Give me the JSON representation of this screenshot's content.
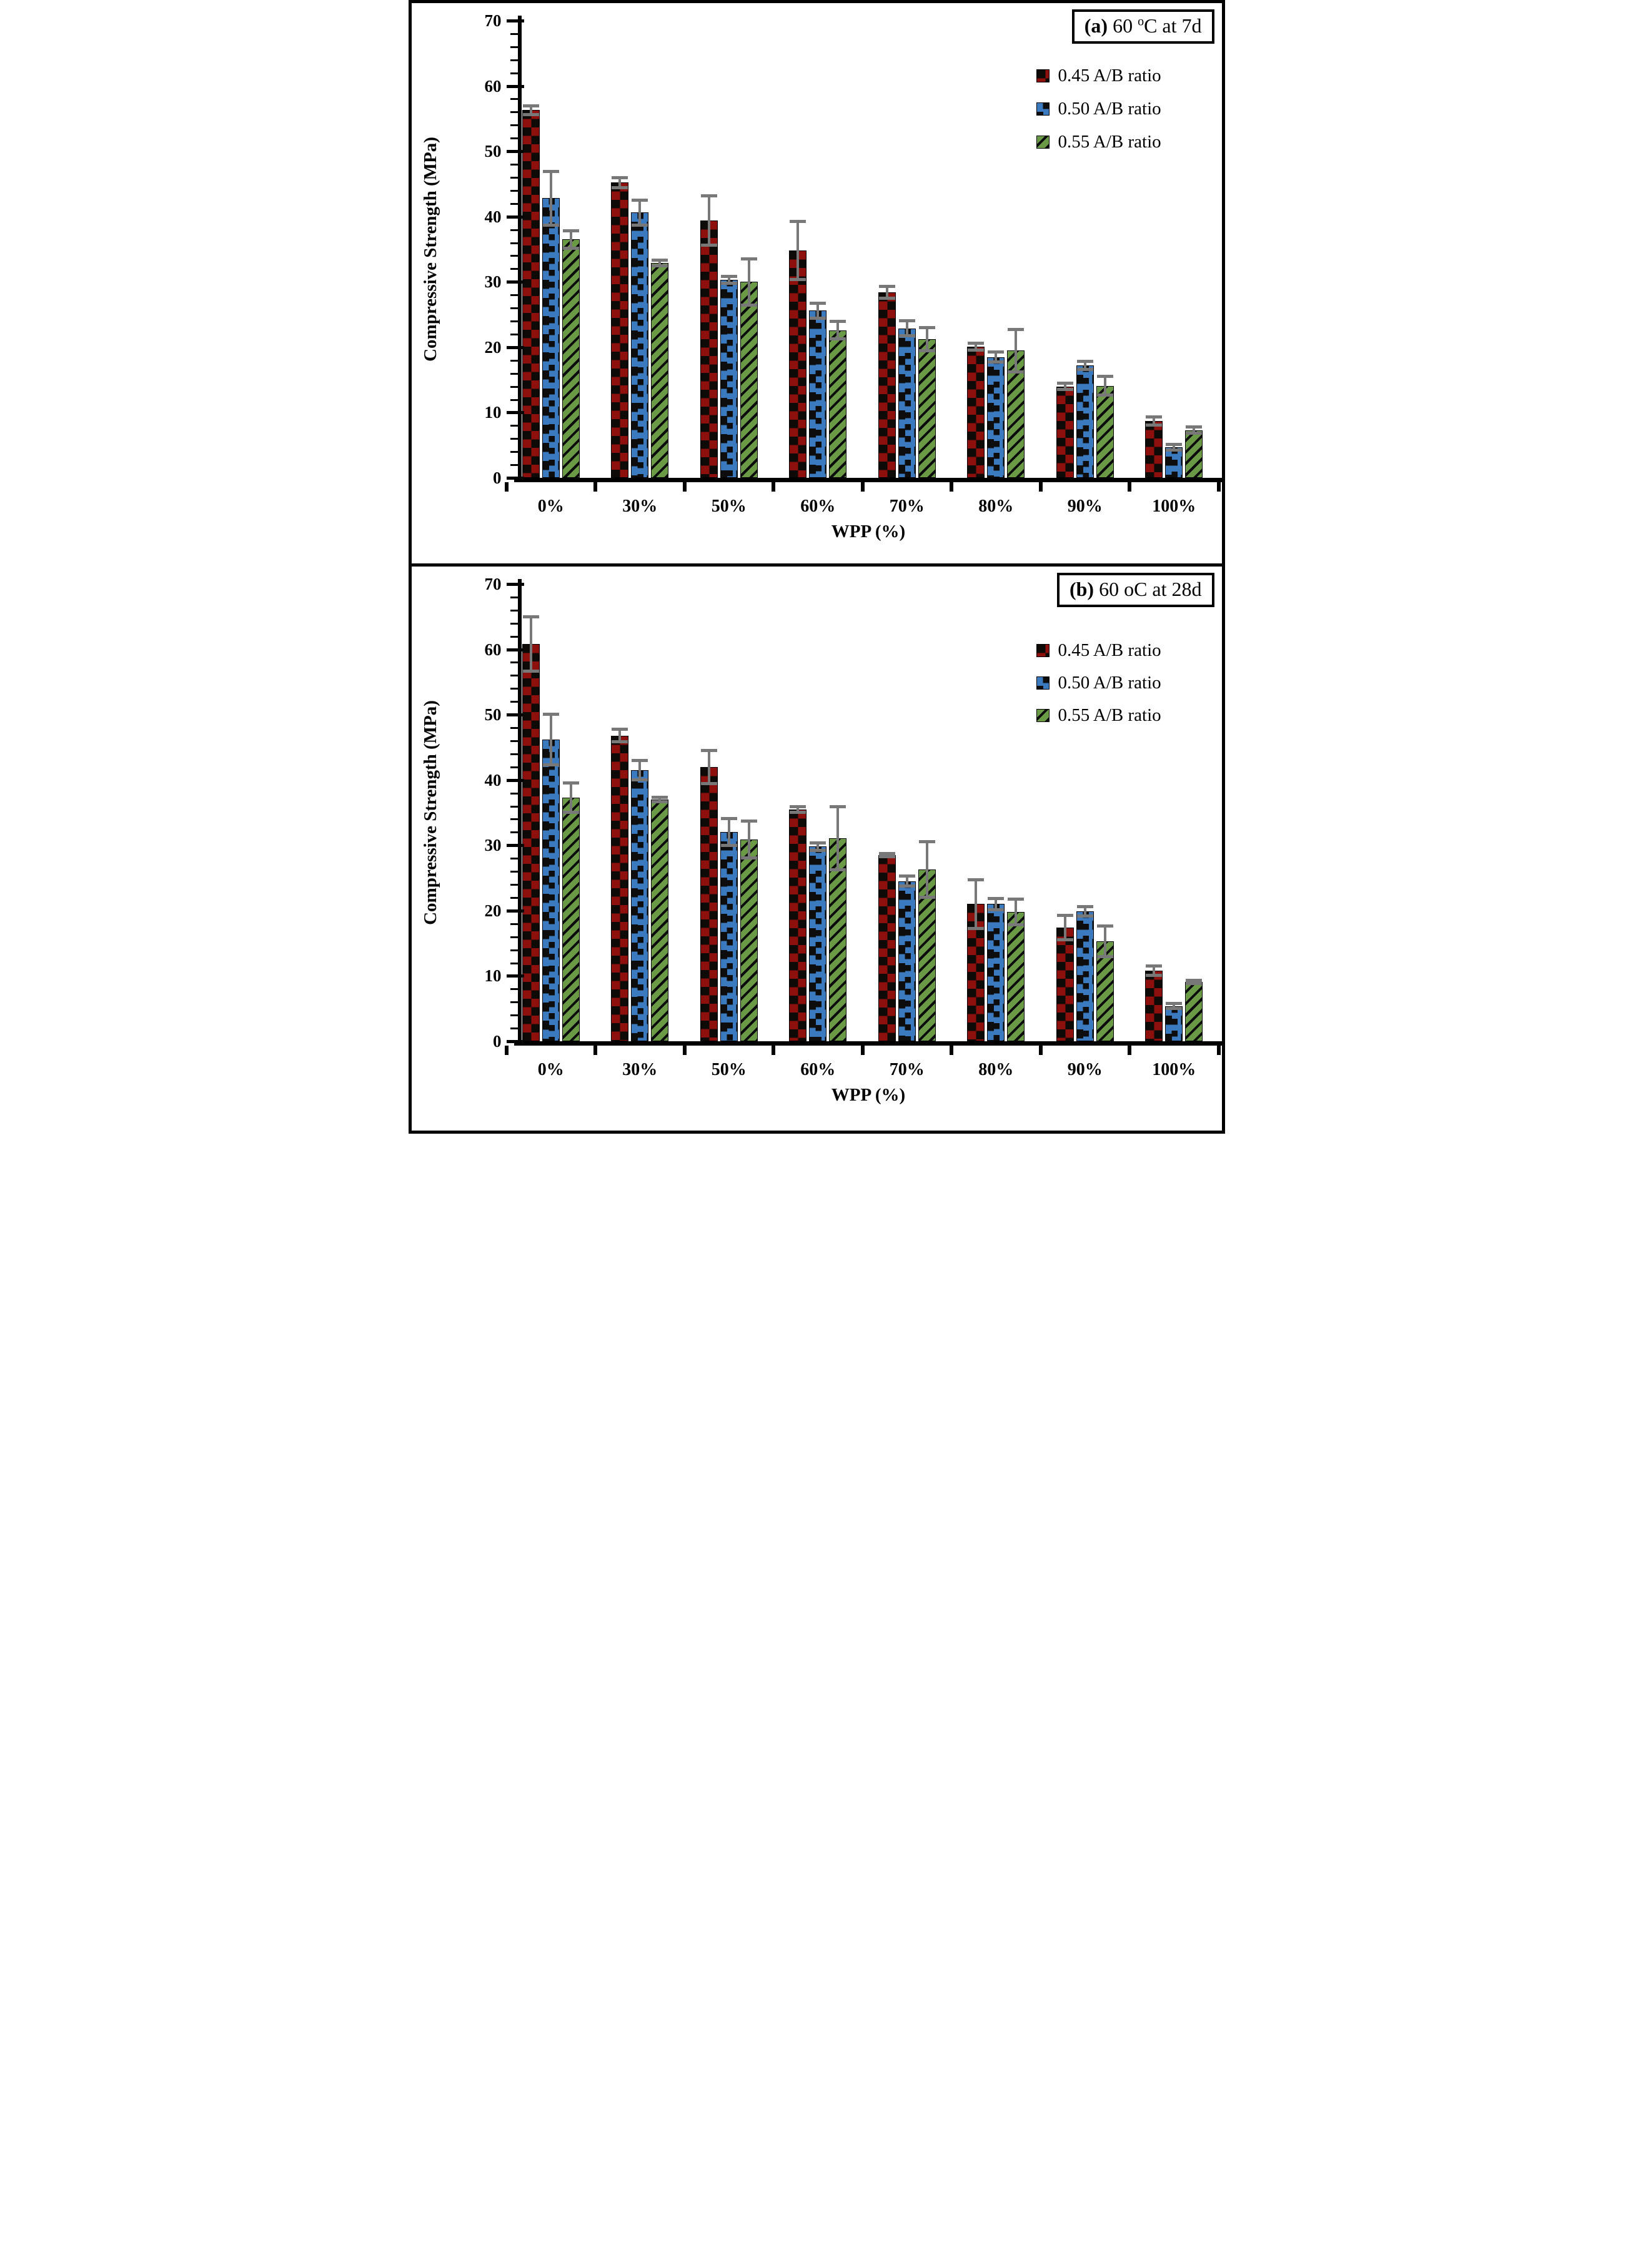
{
  "figure": {
    "background": "#ffffff",
    "border_color": "#000000",
    "error_bar_color": "#787878",
    "axis_color": "#000000"
  },
  "chart_data": [
    {
      "type": "bar",
      "panel": "a",
      "title": "(a) 60 oC at 7d",
      "title_parts": {
        "bold": "(a)",
        "pre": " 60 ",
        "sup": "o",
        "post": "C at 7d"
      },
      "xlabel": "WPP (%)",
      "ylabel": "Compressive Strength (MPa)",
      "ylim": [
        0,
        70
      ],
      "ytick_step": 10,
      "yminor_step": 2,
      "grid": false,
      "legend_position": "upper right",
      "categories": [
        "0%",
        "30%",
        "50%",
        "60%",
        "70%",
        "80%",
        "90%",
        "100%"
      ],
      "series": [
        {
          "name": "0.45 A/B ratio",
          "color": "#8e100c",
          "pattern": "checker",
          "values": [
            56.3,
            45.2,
            39.4,
            34.8,
            28.4,
            20.1,
            14.0,
            8.7
          ],
          "errors": [
            0.7,
            0.8,
            3.8,
            4.5,
            1.0,
            0.6,
            0.5,
            0.7
          ]
        },
        {
          "name": "0.50 A/B ratio",
          "color": "#3b7abf",
          "pattern": "squares",
          "values": [
            42.8,
            40.6,
            30.3,
            25.6,
            22.9,
            18.5,
            17.2,
            4.7
          ],
          "errors": [
            4.2,
            2.0,
            0.6,
            1.2,
            1.2,
            0.8,
            0.7,
            0.5
          ]
        },
        {
          "name": "0.55 A/B ratio",
          "color": "#6b9a47",
          "pattern": "diagonal",
          "values": [
            36.5,
            32.9,
            30.0,
            22.6,
            21.2,
            19.5,
            14.1,
            7.3
          ],
          "errors": [
            1.4,
            0.5,
            3.6,
            1.4,
            1.8,
            3.3,
            1.5,
            0.5
          ]
        }
      ]
    },
    {
      "type": "bar",
      "panel": "b",
      "title": "(b) 60 oC at 28d",
      "title_parts": {
        "bold": "(b)",
        "pre": " 60 oC at 28d",
        "sup": "",
        "post": ""
      },
      "xlabel": "WPP (%)",
      "ylabel": "Compressive Strength (MPa)",
      "ylim": [
        0,
        70
      ],
      "ytick_step": 10,
      "yminor_step": 2,
      "grid": false,
      "legend_position": "upper right",
      "categories": [
        "0%",
        "30%",
        "50%",
        "60%",
        "70%",
        "80%",
        "90%",
        "100%"
      ],
      "series": [
        {
          "name": "0.45 A/B ratio",
          "color": "#8e100c",
          "pattern": "checker",
          "values": [
            60.8,
            46.8,
            42.0,
            35.5,
            28.5,
            21.0,
            17.4,
            10.8
          ],
          "errors": [
            4.2,
            1.0,
            2.6,
            0.5,
            0.3,
            3.8,
            1.9,
            0.8
          ]
        },
        {
          "name": "0.50 A/B ratio",
          "color": "#3b7abf",
          "pattern": "squares",
          "values": [
            46.2,
            41.5,
            32.0,
            29.8,
            24.5,
            21.0,
            19.9,
            5.4
          ],
          "errors": [
            3.9,
            1.5,
            2.1,
            0.6,
            0.8,
            0.9,
            0.8,
            0.4
          ]
        },
        {
          "name": "0.55 A/B ratio",
          "color": "#6b9a47",
          "pattern": "diagonal",
          "values": [
            37.3,
            37.0,
            30.9,
            31.1,
            26.3,
            19.8,
            15.3,
            9.1
          ],
          "errors": [
            2.3,
            0.4,
            2.9,
            4.9,
            4.3,
            2.0,
            2.4,
            0.3
          ]
        }
      ]
    }
  ]
}
